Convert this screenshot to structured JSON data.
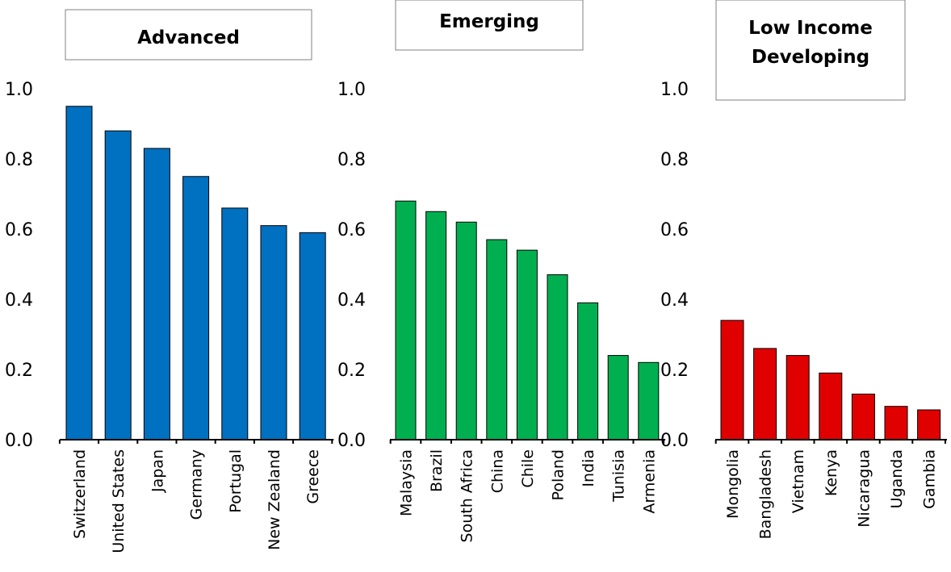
{
  "chart_data": [
    {
      "type": "bar",
      "title": "Advanced",
      "categories": [
        "Switzerland",
        "United States",
        "Japan",
        "Germany",
        "Portugal",
        "New Zealand",
        "Greece"
      ],
      "values": [
        0.95,
        0.88,
        0.83,
        0.75,
        0.66,
        0.61,
        0.59
      ],
      "ylim": [
        0,
        1.0
      ],
      "yticks": [
        "0.0",
        "0.2",
        "0.4",
        "0.6",
        "0.8",
        "1.0"
      ],
      "color": "#0070C0"
    },
    {
      "type": "bar",
      "title": "Emerging",
      "categories": [
        "Malaysia",
        "Brazil",
        "South Africa",
        "China",
        "Chile",
        "Poland",
        "India",
        "Tunisia",
        "Armenia"
      ],
      "values": [
        0.68,
        0.65,
        0.62,
        0.57,
        0.54,
        0.47,
        0.39,
        0.24,
        0.22
      ],
      "ylim": [
        0,
        1.0
      ],
      "yticks": [
        "0.0",
        "0.2",
        "0.4",
        "0.6",
        "0.8",
        "1.0"
      ],
      "color": "#00B050"
    },
    {
      "type": "bar",
      "title": "Low Income Developing",
      "title_lines": [
        "Low Income",
        "Developing"
      ],
      "categories": [
        "Mongolia",
        "Bangladesh",
        "Vietnam",
        "Kenya",
        "Nicaragua",
        "Uganda",
        "Gambia"
      ],
      "values": [
        0.34,
        0.26,
        0.24,
        0.19,
        0.13,
        0.095,
        0.085
      ],
      "ylim": [
        0,
        1.0
      ],
      "yticks": [
        "0.0",
        "0.2",
        "0.4",
        "0.6",
        "0.8",
        "1.0"
      ],
      "color": "#E00000"
    }
  ]
}
